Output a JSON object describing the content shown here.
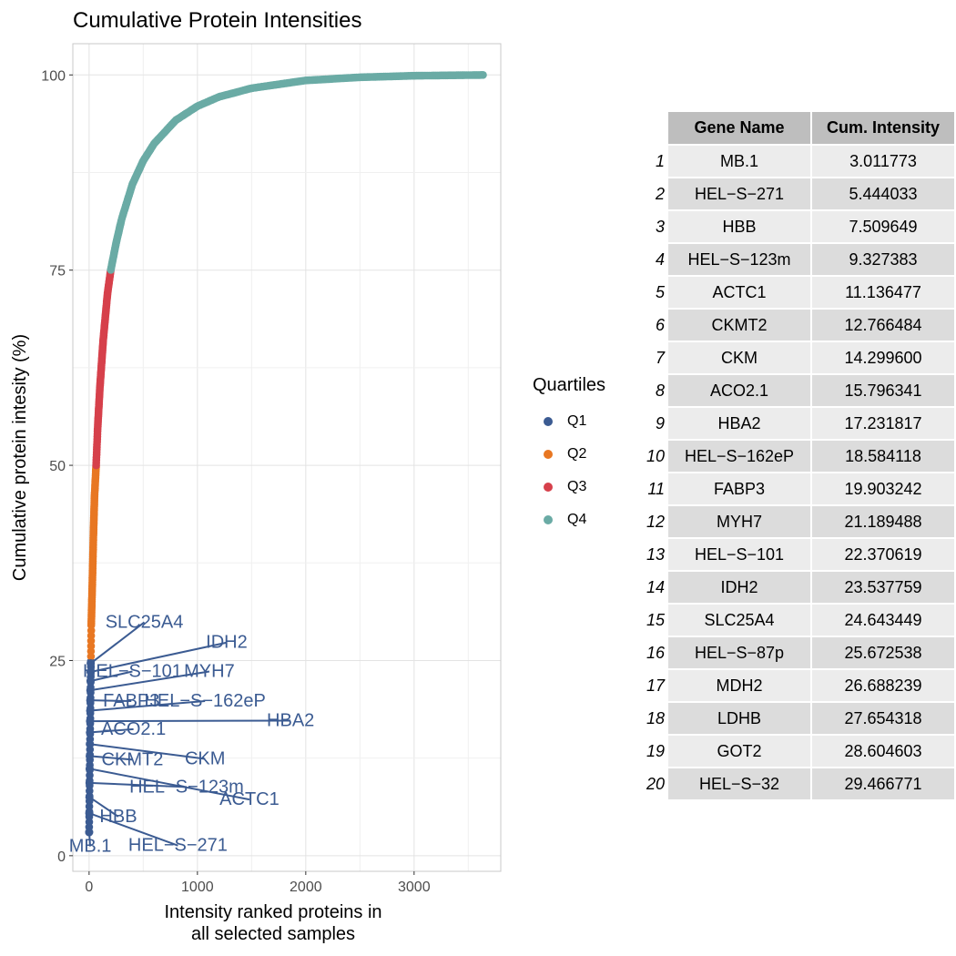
{
  "chart_data": {
    "type": "scatter",
    "title": "Cumulative Protein Intensities",
    "xlabel": "Intensity ranked proteins in\nall selected samples",
    "ylabel": "Cumulative protein intesity (%)",
    "xlim": [
      -150,
      3800
    ],
    "ylim": [
      -2,
      104
    ],
    "x_ticks": [
      0,
      1000,
      2000,
      3000
    ],
    "y_ticks": [
      0,
      25,
      50,
      75,
      100
    ],
    "grid": true,
    "total_proteins": 3650,
    "legend": {
      "title": "Quartiles",
      "placement": "right",
      "items": [
        {
          "label": "Q1",
          "color": "#3B5B92"
        },
        {
          "label": "Q2",
          "color": "#E87722"
        },
        {
          "label": "Q3",
          "color": "#D6404B"
        },
        {
          "label": "Q4",
          "color": "#6AABA5"
        }
      ]
    },
    "quartile_boundaries_pct": [
      25,
      50,
      75
    ],
    "curve": [
      {
        "x": 0,
        "y": 3.0
      },
      {
        "x": 20,
        "y": 29.5
      },
      {
        "x": 30,
        "y": 35
      },
      {
        "x": 40,
        "y": 41
      },
      {
        "x": 50,
        "y": 46
      },
      {
        "x": 65,
        "y": 50
      },
      {
        "x": 80,
        "y": 55
      },
      {
        "x": 100,
        "y": 60
      },
      {
        "x": 130,
        "y": 66
      },
      {
        "x": 170,
        "y": 72
      },
      {
        "x": 200,
        "y": 75
      },
      {
        "x": 250,
        "y": 78.5
      },
      {
        "x": 300,
        "y": 81.5
      },
      {
        "x": 400,
        "y": 86
      },
      {
        "x": 500,
        "y": 89
      },
      {
        "x": 600,
        "y": 91.2
      },
      {
        "x": 800,
        "y": 94.2
      },
      {
        "x": 1000,
        "y": 96
      },
      {
        "x": 1200,
        "y": 97.2
      },
      {
        "x": 1500,
        "y": 98.3
      },
      {
        "x": 2000,
        "y": 99.3
      },
      {
        "x": 2500,
        "y": 99.7
      },
      {
        "x": 3000,
        "y": 99.9
      },
      {
        "x": 3650,
        "y": 100
      }
    ],
    "labeled_points": [
      {
        "rank": 1,
        "gene": "MB.1",
        "y": 3.011773
      },
      {
        "rank": 2,
        "gene": "HEL-S-271",
        "y": 5.444033
      },
      {
        "rank": 3,
        "gene": "HBB",
        "y": 7.509649
      },
      {
        "rank": 4,
        "gene": "HEL-S-123m",
        "y": 9.327383
      },
      {
        "rank": 5,
        "gene": "ACTC1",
        "y": 11.136477
      },
      {
        "rank": 6,
        "gene": "CKMT2",
        "y": 12.766484
      },
      {
        "rank": 7,
        "gene": "CKM",
        "y": 14.2996
      },
      {
        "rank": 8,
        "gene": "ACO2.1",
        "y": 15.796341
      },
      {
        "rank": 9,
        "gene": "HBA2",
        "y": 17.231817
      },
      {
        "rank": 10,
        "gene": "HEL-S-162eP",
        "y": 18.584118
      },
      {
        "rank": 11,
        "gene": "FABP3",
        "y": 19.903242
      },
      {
        "rank": 12,
        "gene": "MYH7",
        "y": 21.189488
      },
      {
        "rank": 13,
        "gene": "HEL-S-101",
        "y": 22.370619
      },
      {
        "rank": 14,
        "gene": "IDH2",
        "y": 23.537759
      },
      {
        "rank": 15,
        "gene": "SLC25A4",
        "y": 24.643449
      }
    ],
    "annotations": [
      {
        "text": "MB.1",
        "rank": 1,
        "lx": 10,
        "ly": 0.5
      },
      {
        "text": "HEL−S−271",
        "rank": 2,
        "lx": 820,
        "ly": 0.6
      },
      {
        "text": "HBB",
        "rank": 3,
        "lx": 270,
        "ly": 4.3
      },
      {
        "text": "HEL−S−123m",
        "rank": 4,
        "lx": 900,
        "ly": 8.1
      },
      {
        "text": "ACTC1",
        "rank": 5,
        "lx": 1480,
        "ly": 6.5
      },
      {
        "text": "CKMT2",
        "rank": 6,
        "lx": 400,
        "ly": 11.6
      },
      {
        "text": "CKM",
        "rank": 7,
        "lx": 1070,
        "ly": 11.7
      },
      {
        "text": "ACO2.1",
        "rank": 8,
        "lx": 410,
        "ly": 15.5
      },
      {
        "text": "HBA2",
        "rank": 9,
        "lx": 1860,
        "ly": 16.6
      },
      {
        "text": "HEL−S−162eP",
        "rank": 10,
        "lx": 1070,
        "ly": 19.1
      },
      {
        "text": "FABP3",
        "rank": 11,
        "lx": 390,
        "ly": 19.1
      },
      {
        "text": "MYH7",
        "rank": 12,
        "lx": 1110,
        "ly": 22.9
      },
      {
        "text": "HEL−S−101",
        "rank": 13,
        "lx": 400,
        "ly": 22.9
      },
      {
        "text": "IDH2",
        "rank": 14,
        "lx": 1270,
        "ly": 26.6
      },
      {
        "text": "SLC25A4",
        "rank": 15,
        "lx": 510,
        "ly": 29.2
      }
    ]
  },
  "table": {
    "headers": [
      "Gene Name",
      "Cum. Intensity"
    ],
    "rows": [
      {
        "idx": "1",
        "gene": "MB.1",
        "value": "3.011773"
      },
      {
        "idx": "2",
        "gene": "HEL−S−271",
        "value": "5.444033"
      },
      {
        "idx": "3",
        "gene": "HBB",
        "value": "7.509649"
      },
      {
        "idx": "4",
        "gene": "HEL−S−123m",
        "value": "9.327383"
      },
      {
        "idx": "5",
        "gene": "ACTC1",
        "value": "11.136477"
      },
      {
        "idx": "6",
        "gene": "CKMT2",
        "value": "12.766484"
      },
      {
        "idx": "7",
        "gene": "CKM",
        "value": "14.299600"
      },
      {
        "idx": "8",
        "gene": "ACO2.1",
        "value": "15.796341"
      },
      {
        "idx": "9",
        "gene": "HBA2",
        "value": "17.231817"
      },
      {
        "idx": "10",
        "gene": "HEL−S−162eP",
        "value": "18.584118"
      },
      {
        "idx": "11",
        "gene": "FABP3",
        "value": "19.903242"
      },
      {
        "idx": "12",
        "gene": "MYH7",
        "value": "21.189488"
      },
      {
        "idx": "13",
        "gene": "HEL−S−101",
        "value": "22.370619"
      },
      {
        "idx": "14",
        "gene": "IDH2",
        "value": "23.537759"
      },
      {
        "idx": "15",
        "gene": "SLC25A4",
        "value": "24.643449"
      },
      {
        "idx": "16",
        "gene": "HEL−S−87p",
        "value": "25.672538"
      },
      {
        "idx": "17",
        "gene": "MDH2",
        "value": "26.688239"
      },
      {
        "idx": "18",
        "gene": "LDHB",
        "value": "27.654318"
      },
      {
        "idx": "19",
        "gene": "GOT2",
        "value": "28.604603"
      },
      {
        "idx": "20",
        "gene": "HEL−S−32",
        "value": "29.466771"
      }
    ]
  }
}
